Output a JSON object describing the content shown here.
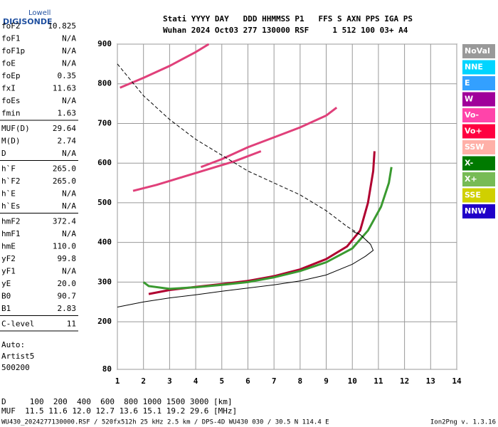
{
  "logo": {
    "line1": "Lowell",
    "line2": "DIGISONDE"
  },
  "header": {
    "line1": "Stati YYYY DAY   DDD HHMMSS P1   FFS S AXN PPS IGA PS",
    "line2": "Wuhan 2024 Oct03 277 130000 RSF     1 512 100 03+ A4"
  },
  "params": [
    [
      [
        "foF2",
        "10.825"
      ],
      [
        "foF1",
        "N/A"
      ],
      [
        "foF1p",
        "N/A"
      ],
      [
        "foE",
        "N/A"
      ],
      [
        "foEp",
        "0.35"
      ],
      [
        "fxI",
        "11.63"
      ],
      [
        "foEs",
        "N/A"
      ],
      [
        "fmin",
        "1.63"
      ]
    ],
    [
      [
        "MUF(D)",
        "29.64"
      ],
      [
        "M(D)",
        "2.74"
      ],
      [
        "D",
        "N/A"
      ]
    ],
    [
      [
        "h`F",
        "265.0"
      ],
      [
        "h`F2",
        "265.0"
      ],
      [
        "h`E",
        "N/A"
      ],
      [
        "h`Es",
        "N/A"
      ]
    ],
    [
      [
        "hmF2",
        "372.4"
      ],
      [
        "hmF1",
        "N/A"
      ],
      [
        "hmE",
        "110.0"
      ],
      [
        "yF2",
        "99.8"
      ],
      [
        "yF1",
        "N/A"
      ],
      [
        "yE",
        "20.0"
      ],
      [
        "B0",
        "90.7"
      ],
      [
        "B1",
        "2.83"
      ]
    ],
    [
      [
        "C-level",
        "11"
      ]
    ]
  ],
  "auto": [
    "Auto:",
    "Artist5",
    "500200"
  ],
  "direction_legend": [
    {
      "label": "NoVal",
      "color": "#999999"
    },
    {
      "label": "NNE",
      "color": "#00d4ff"
    },
    {
      "label": "E",
      "color": "#33a0ff"
    },
    {
      "label": "W",
      "color": "#a0009a"
    },
    {
      "label": "Vo-",
      "color": "#ff44aa"
    },
    {
      "label": "Vo+",
      "color": "#ff0040"
    },
    {
      "label": "SSW",
      "color": "#ffb0a8"
    },
    {
      "label": "X-",
      "color": "#007a00"
    },
    {
      "label": "X+",
      "color": "#77bb55"
    },
    {
      "label": "SSE",
      "color": "#d0d000"
    },
    {
      "label": "NNW",
      "color": "#2000c8"
    }
  ],
  "footer": {
    "line1": "D     100  200  400  600  800 1000 1500 3000 [km]",
    "line2": "MUF  11.5 11.6 12.0 12.7 13.6 15.1 19.2 29.6 [MHz]",
    "file": "WU430_2024277130000.RSF / 520fx512h 25 kHz 2.5 km / DPS-4D WU430 030 / 30.5 N 114.4 E",
    "version": "Ion2Png v. 1.3.16"
  },
  "chart_data": {
    "type": "line",
    "xlim": [
      1,
      14
    ],
    "ylim": [
      80,
      900
    ],
    "xticks": [
      1,
      2,
      3,
      4,
      5,
      6,
      7,
      8,
      9,
      10,
      11,
      12,
      13,
      14
    ],
    "yticks": [
      80,
      200,
      300,
      400,
      500,
      600,
      700,
      800,
      900
    ],
    "grid": true,
    "series": [
      {
        "color": "#b00030",
        "width": 3,
        "x": [
          2.2,
          3,
          4,
          5,
          6,
          7,
          8,
          9,
          9.8,
          10.3,
          10.6,
          10.8,
          10.85
        ],
        "values": [
          270,
          280,
          288,
          295,
          303,
          315,
          332,
          358,
          390,
          430,
          500,
          580,
          630
        ]
      },
      {
        "color": "#3a9a30",
        "width": 3,
        "x": [
          2,
          2.2,
          3,
          4,
          5,
          6,
          7,
          8,
          9,
          10,
          10.6,
          11.1,
          11.4,
          11.5
        ],
        "values": [
          300,
          290,
          283,
          287,
          293,
          300,
          312,
          328,
          350,
          385,
          430,
          490,
          550,
          590
        ]
      },
      {
        "color": "#e0407a",
        "width": 3,
        "x": [
          1.6,
          2.5,
          3.5,
          4.5,
          5.5,
          6.5
        ],
        "values": [
          530,
          545,
          565,
          585,
          605,
          630
        ]
      },
      {
        "color": "#e0407a",
        "width": 3,
        "x": [
          4.2,
          5,
          6,
          7,
          8,
          9,
          9.4
        ],
        "values": [
          590,
          610,
          640,
          665,
          690,
          720,
          740
        ]
      },
      {
        "color": "#e0407a",
        "width": 3,
        "x": [
          1.1,
          2,
          3,
          4,
          4.5
        ],
        "values": [
          790,
          815,
          845,
          880,
          900
        ]
      },
      {
        "color": "#000000",
        "width": 1,
        "x": [
          1,
          2,
          3,
          4,
          5,
          6,
          7,
          8,
          9,
          10,
          10.5,
          10.8,
          10.7,
          10.3,
          10
        ],
        "values": [
          237,
          250,
          260,
          268,
          277,
          285,
          293,
          303,
          318,
          345,
          365,
          380,
          395,
          420,
          428
        ]
      },
      {
        "color": "#000000",
        "width": 1,
        "dash": true,
        "x": [
          1,
          2,
          3,
          4,
          5,
          6,
          7,
          8,
          9,
          9.8,
          10.3,
          10.7
        ],
        "values": [
          850,
          770,
          710,
          660,
          620,
          580,
          550,
          520,
          480,
          440,
          420,
          395
        ]
      }
    ]
  }
}
